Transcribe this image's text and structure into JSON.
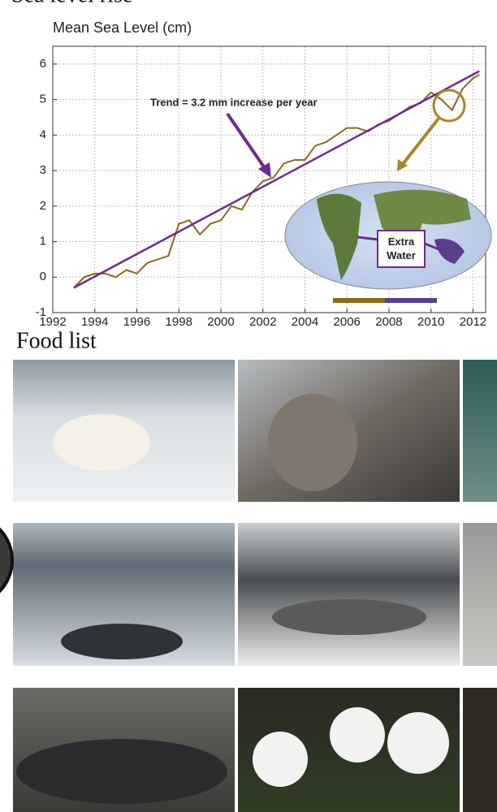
{
  "header": {
    "title": "Sea level rise"
  },
  "chart_data": {
    "type": "line",
    "title": "Mean Sea Level (cm)",
    "annotations": [
      "Trend = 3.2 mm increase per year",
      "Extra Water"
    ],
    "series": [
      {
        "color": "#8a6a1e",
        "x": [
          1993,
          1993.5,
          1994,
          1994.5,
          1995,
          1995.5,
          1996,
          1996.5,
          1997,
          1997.5,
          1998,
          1998.5,
          1999,
          1999.5,
          2000,
          2000.5,
          2001,
          2001.5,
          2002,
          2002.5,
          2003,
          2003.5,
          2004,
          2004.5,
          2005,
          2005.5,
          2006,
          2006.5,
          2007,
          2007.5,
          2008,
          2008.5,
          2009,
          2009.5,
          2010,
          2010.5,
          2011,
          2011.5,
          2012,
          2012.3
        ],
        "values": [
          -0.3,
          0.0,
          0.1,
          0.1,
          0.0,
          0.2,
          0.1,
          0.4,
          0.5,
          0.6,
          1.5,
          1.6,
          1.2,
          1.5,
          1.6,
          2.0,
          1.9,
          2.4,
          2.7,
          2.8,
          3.2,
          3.3,
          3.3,
          3.7,
          3.8,
          4.0,
          4.2,
          4.2,
          4.1,
          4.3,
          4.4,
          4.6,
          4.8,
          4.9,
          5.2,
          5.0,
          4.7,
          5.3,
          5.6,
          5.7
        ]
      },
      {
        "color": "#6b2d8c",
        "x": [
          1993,
          2012.3
        ],
        "values": [
          -0.3,
          5.8
        ]
      }
    ],
    "xlim": [
      1992,
      2012.6
    ],
    "xticks": [
      1992,
      1994,
      1996,
      1998,
      2000,
      2002,
      2004,
      2006,
      2008,
      2010,
      2012
    ],
    "ylim": [
      -1,
      6.5
    ],
    "yticks": [
      -1,
      0,
      1,
      2,
      3,
      4,
      5,
      6
    ],
    "grid": true
  },
  "food": {
    "title": "Food list"
  }
}
